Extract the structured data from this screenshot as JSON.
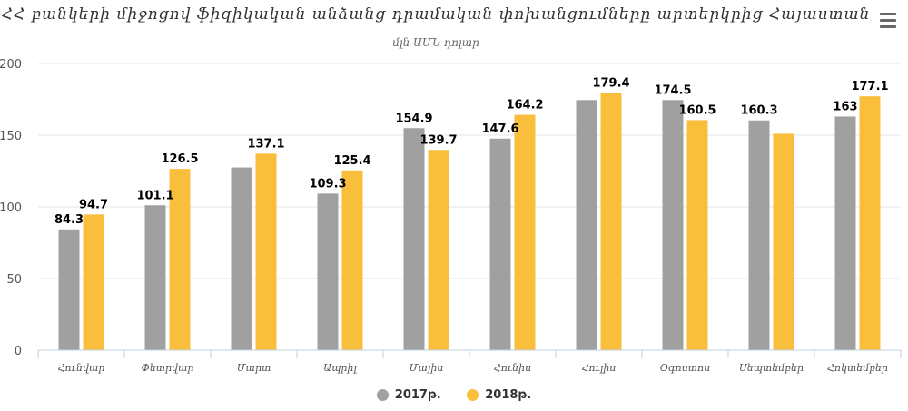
{
  "title": "ՀՀ բանկերի միջոցով ֆիզիկական անձանց դրամական փոխանցումները արտերկրից Հայաստան",
  "subtitle": "մլն ԱՄՆ դոլար",
  "menu_icon": "hamburger-menu-icon",
  "chart_data": {
    "type": "bar",
    "categories": [
      "Հունվար",
      "Փետրվար",
      "Մարտ",
      "Ապրիլ",
      "Մայիս",
      "Հունիս",
      "Հուլիս",
      "Օգոստոս",
      "Սեպտեմբեր",
      "Հոկտեմբեր"
    ],
    "series": [
      {
        "name": "2017թ.",
        "color": "#a0a0a0",
        "values": [
          84.3,
          101.1,
          127.5,
          109.3,
          154.9,
          147.6,
          174.5,
          174.5,
          160.3,
          163
        ],
        "labels": [
          "84.3",
          "101.1",
          "",
          "109.3",
          "154.9",
          "147.6",
          "",
          "174.5",
          "160.3",
          "163"
        ]
      },
      {
        "name": "2018թ.",
        "color": "#f8be3c",
        "values": [
          94.7,
          126.5,
          137.1,
          125.4,
          139.7,
          164.2,
          179.4,
          160.5,
          151,
          177.1
        ],
        "labels": [
          "94.7",
          "126.5",
          "137.1",
          "125.4",
          "139.7",
          "164.2",
          "179.4",
          "160.5",
          "",
          "177.1"
        ]
      }
    ],
    "ylim": [
      0,
      200
    ],
    "yticks": [
      0,
      50,
      100,
      150,
      200
    ],
    "grid": true,
    "legend_position": "bottom"
  }
}
